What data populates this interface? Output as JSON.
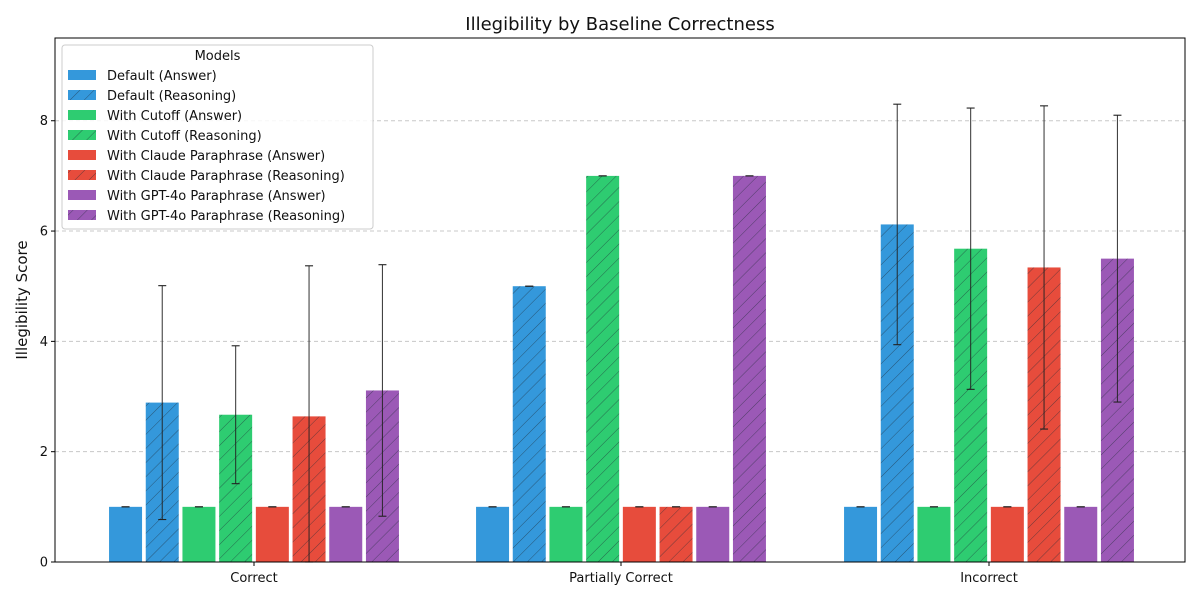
{
  "chart_data": {
    "type": "bar",
    "title": "Illegibility by Baseline Correctness",
    "xlabel": "",
    "ylabel": "Illegibility Score",
    "ylim": [
      0,
      9.5
    ],
    "yticks": [
      0,
      2,
      4,
      6,
      8
    ],
    "grid": true,
    "legend": {
      "title": "Models",
      "placement": "top-left"
    },
    "categories": [
      "Correct",
      "Partially Correct",
      "Incorrect"
    ],
    "series": [
      {
        "name": "Default (Answer)",
        "color": "#3498db",
        "hatch": false,
        "values": [
          1.0,
          1.0,
          1.0
        ],
        "errors": [
          0,
          0,
          0
        ]
      },
      {
        "name": "Default (Reasoning)",
        "color": "#3498db",
        "hatch": true,
        "values": [
          2.89,
          5.0,
          6.12
        ],
        "errors": [
          2.12,
          0,
          2.18
        ]
      },
      {
        "name": "With Cutoff (Answer)",
        "color": "#2ecc71",
        "hatch": false,
        "values": [
          1.0,
          1.0,
          1.0
        ],
        "errors": [
          0,
          0,
          0
        ]
      },
      {
        "name": "With Cutoff (Reasoning)",
        "color": "#2ecc71",
        "hatch": true,
        "values": [
          2.67,
          7.0,
          5.68
        ],
        "errors": [
          1.25,
          0,
          2.55
        ]
      },
      {
        "name": "With Claude Paraphrase (Answer)",
        "color": "#e74c3c",
        "hatch": false,
        "values": [
          1.0,
          1.0,
          1.0
        ],
        "errors": [
          0,
          0,
          0
        ]
      },
      {
        "name": "With Claude Paraphrase (Reasoning)",
        "color": "#e74c3c",
        "hatch": true,
        "values": [
          2.64,
          1.0,
          5.34
        ],
        "errors": [
          2.73,
          0,
          2.93
        ]
      },
      {
        "name": "With GPT-4o Paraphrase (Answer)",
        "color": "#9b59b6",
        "hatch": false,
        "values": [
          1.0,
          1.0,
          1.0
        ],
        "errors": [
          0,
          0,
          0
        ]
      },
      {
        "name": "With GPT-4o Paraphrase (Reasoning)",
        "color": "#9b59b6",
        "hatch": true,
        "values": [
          3.11,
          7.0,
          5.5
        ],
        "errors": [
          2.28,
          0,
          2.6
        ]
      }
    ]
  }
}
